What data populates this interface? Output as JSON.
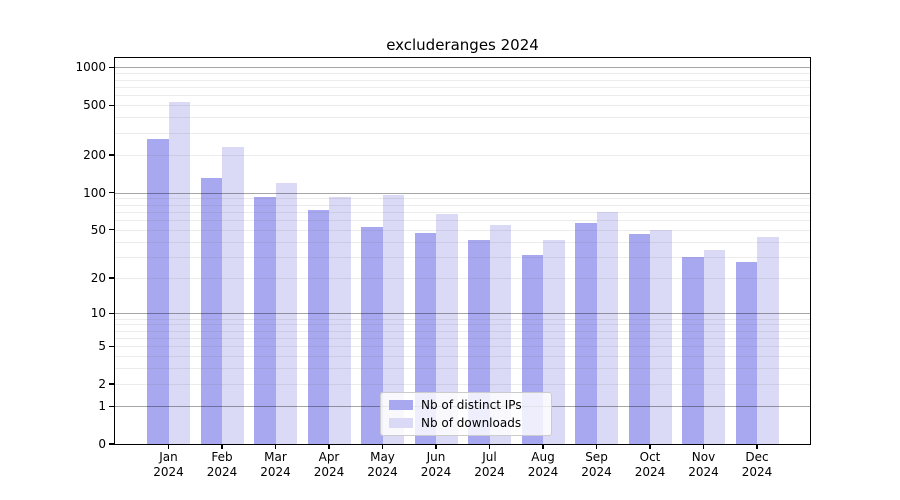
{
  "title": "excluderanges 2024",
  "chart_data": {
    "type": "bar",
    "title": "excluderanges 2024",
    "y_scale": "log1p",
    "grid": "on",
    "legend_position": "lower-center",
    "ylim": [
      0,
      1190
    ],
    "categories": [
      {
        "month": "Jan",
        "year": "2024"
      },
      {
        "month": "Feb",
        "year": "2024"
      },
      {
        "month": "Mar",
        "year": "2024"
      },
      {
        "month": "Apr",
        "year": "2024"
      },
      {
        "month": "May",
        "year": "2024"
      },
      {
        "month": "Jun",
        "year": "2024"
      },
      {
        "month": "Jul",
        "year": "2024"
      },
      {
        "month": "Aug",
        "year": "2024"
      },
      {
        "month": "Sep",
        "year": "2024"
      },
      {
        "month": "Oct",
        "year": "2024"
      },
      {
        "month": "Nov",
        "year": "2024"
      },
      {
        "month": "Dec",
        "year": "2024"
      }
    ],
    "series": [
      {
        "name": "Nb of distinct IPs",
        "color": "#a8a8f0",
        "values": [
          270,
          130,
          92,
          72,
          53,
          47,
          41,
          31,
          57,
          46,
          30,
          27
        ]
      },
      {
        "name": "Nb of downloads",
        "color": "#dadaf6",
        "values": [
          530,
          230,
          120,
          92,
          95,
          67,
          55,
          41,
          69,
          50,
          34,
          44
        ]
      }
    ],
    "y_tick_values": [
      1000,
      500,
      200,
      100,
      50,
      20,
      10,
      5,
      2,
      1,
      0
    ],
    "y_tick_labels": [
      "1000",
      "500",
      "200",
      "100",
      "50",
      "20",
      "10",
      "5",
      "2",
      "1",
      "0"
    ]
  },
  "legend": {
    "items": [
      {
        "label": "Nb of distinct IPs"
      },
      {
        "label": "Nb of downloads"
      }
    ]
  },
  "colors": {
    "bar_dark": "#a8a8f0",
    "bar_light": "#dadaf6",
    "axis": "#000000",
    "grid_minor": "#ececec",
    "grid_major": "#aaaaaa",
    "legend_border": "#cccccc"
  }
}
